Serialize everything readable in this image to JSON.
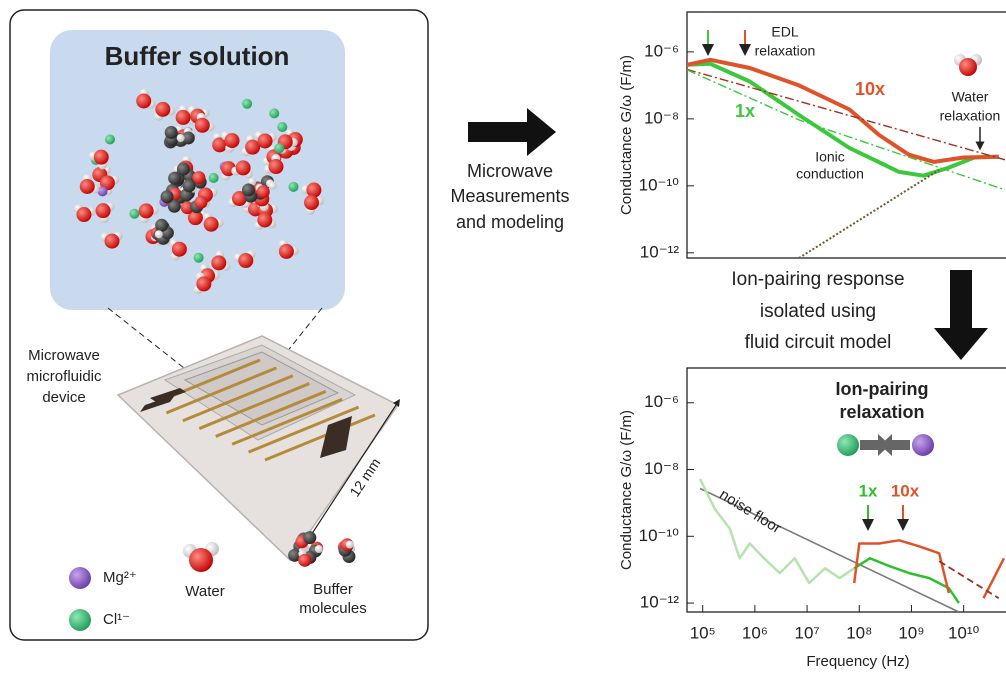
{
  "left_panel": {
    "title": "Buffer solution",
    "device_label": [
      "Microwave",
      "microfluidic",
      "device"
    ],
    "scale_label": "12 mm",
    "legend": {
      "mg": "Mg²⁺",
      "cl": "Cl¹⁻",
      "water": "Water",
      "buffer": [
        "Buffer",
        "molecules"
      ]
    }
  },
  "steps": {
    "measure": [
      "Microwave",
      "Measurements",
      "and modeling"
    ],
    "isolate": [
      "Ion-pairing response",
      "isolated using",
      "fluid circuit model"
    ]
  },
  "chart_data": [
    {
      "type": "line",
      "y_label": "Conductance G/ω (F/m)",
      "log_x": true,
      "log_y": true,
      "xlim": [
        50000.0,
        62000000000.0
      ],
      "ylim": [
        7e-13,
        1.55e-05
      ],
      "yticks": [
        {
          "value": 1e-06,
          "label": "10⁻⁶"
        },
        {
          "value": 1e-08,
          "label": "10⁻⁸"
        },
        {
          "value": 1e-10,
          "label": "10⁻¹⁰"
        },
        {
          "value": 1e-12,
          "label": "10⁻¹²"
        }
      ],
      "annotations": {
        "edl": [
          "EDL",
          "relaxation"
        ],
        "ionic": [
          "Ionic",
          "conduction"
        ],
        "water": [
          "Water",
          "relaxation"
        ]
      },
      "series": [
        {
          "name": "1x",
          "color": "#3cc83c",
          "line_style": "thick",
          "x": [
            50000.0,
            140000.0,
            800000.0,
            7000000.0,
            65000000.0,
            580000000.0,
            1700000000.0,
            5200000000.0,
            16000000000.0,
            47000000000.0
          ],
          "values": [
            4.1e-07,
            4.4e-07,
            1.3e-07,
            1.3e-08,
            1.35e-09,
            2.6e-10,
            2e-10,
            3.5e-10,
            7e-10,
            7.4e-10
          ]
        },
        {
          "name": "10x",
          "color": "#e0532a",
          "line_style": "thick",
          "x": [
            50000.0,
            140000.0,
            800000.0,
            7000000.0,
            65000000.0,
            240000000.0,
            890000000.0,
            2700000000.0,
            10000000000.0,
            47000000000.0
          ],
          "values": [
            4.1e-07,
            5.8e-07,
            3.3e-07,
            1e-07,
            1.9e-08,
            3.3e-09,
            8.5e-10,
            5.2e-10,
            7e-10,
            7.4e-10
          ]
        },
        {
          "color": "#a03020",
          "line_style": "dashdot",
          "x": [
            50000.0,
            62000000000.0
          ],
          "values": [
            3e-07,
            6e-10
          ]
        },
        {
          "color": "#3cc83c",
          "line_style": "dashdot",
          "x": [
            50000.0,
            7000000.0,
            62000000000.0
          ],
          "values": [
            2.9e-07,
            9.3e-09,
            7.6e-11
          ]
        },
        {
          "color": "#6b5a2a",
          "line_style": "dotted",
          "x": [
            7000000.0,
            3400000000.0
          ],
          "values": [
            7e-13,
            3e-10
          ]
        }
      ]
    },
    {
      "type": "line",
      "x_label": "Frequency (Hz)",
      "y_label": "Conductance G/ω (F/m)",
      "log_x": true,
      "log_y": true,
      "xlim": [
        50000.0,
        62000000000.0
      ],
      "ylim": [
        5.4e-13,
        1.1e-05
      ],
      "xticks": [
        {
          "value": 100000.0,
          "label": "10⁵"
        },
        {
          "value": 1000000.0,
          "label": "10⁶"
        },
        {
          "value": 10000000.0,
          "label": "10⁷"
        },
        {
          "value": 100000000.0,
          "label": "10⁸"
        },
        {
          "value": 1000000000.0,
          "label": "10⁹"
        },
        {
          "value": 10000000000.0,
          "label": "10¹⁰"
        }
      ],
      "yticks": [
        {
          "value": 1e-06,
          "label": "10⁻⁶"
        },
        {
          "value": 1e-08,
          "label": "10⁻⁸"
        },
        {
          "value": 1e-10,
          "label": "10⁻¹⁰"
        },
        {
          "value": 1e-12,
          "label": "10⁻¹²"
        }
      ],
      "annotations": {
        "title": [
          "Ion-pairing",
          "relaxation"
        ]
      },
      "series": [
        {
          "name": "noise floor",
          "color": "#7a7a7a",
          "line_style": "thin",
          "x": [
            89000.0,
            8100000000.0
          ],
          "values": [
            2.7e-09,
            5.4e-13
          ]
        },
        {
          "color": "#b5e3ad",
          "line_style": "noisy",
          "x": [
            89000.0,
            170000.0,
            330000.0,
            510000.0,
            800000.0,
            1500000.0,
            3000000.0,
            5800000.0,
            11000000.0,
            22000000.0,
            42000000.0,
            80000000.0
          ],
          "values": [
            5.2e-09,
            6.7e-10,
            1.7e-10,
            2.2e-11,
            6.1e-11,
            2.2e-11,
            7.9e-12,
            2.2e-11,
            4e-12,
            1.1e-11,
            5.6e-12,
            1.1e-11
          ]
        },
        {
          "name": "1x",
          "color": "#2fc02f",
          "line_style": "noisy",
          "x": [
            80000000.0,
            160000000.0,
            370000000.0,
            900000000.0,
            2200000000.0,
            5200000000.0,
            8100000000.0
          ],
          "values": [
            1.1e-11,
            2.2e-11,
            1.3e-11,
            7.9e-12,
            5.6e-12,
            2.8e-12,
            1e-12
          ]
        },
        {
          "name": "10x",
          "color": "#e0532a",
          "line_style": "noisy",
          "x": [
            80000000.0,
            100000000.0,
            240000000.0,
            580000000.0,
            1400000000.0,
            3400000000.0,
            5200000000.0,
            10000000000.0,
            24000000000.0,
            38000000000.0,
            59000000000.0
          ],
          "values": [
            4e-12,
            6.1e-11,
            6.1e-11,
            7.6e-11,
            5e-11,
            3.1e-11,
            2e-12,
            null,
            1.4e-12,
            5.6e-12,
            2.2e-11
          ]
        },
        {
          "color": "#a03020",
          "line_style": "dashed",
          "x": [
            3400000000.0,
            47000000000.0
          ],
          "values": [
            1.8e-11,
            1.4e-12
          ]
        }
      ]
    }
  ]
}
